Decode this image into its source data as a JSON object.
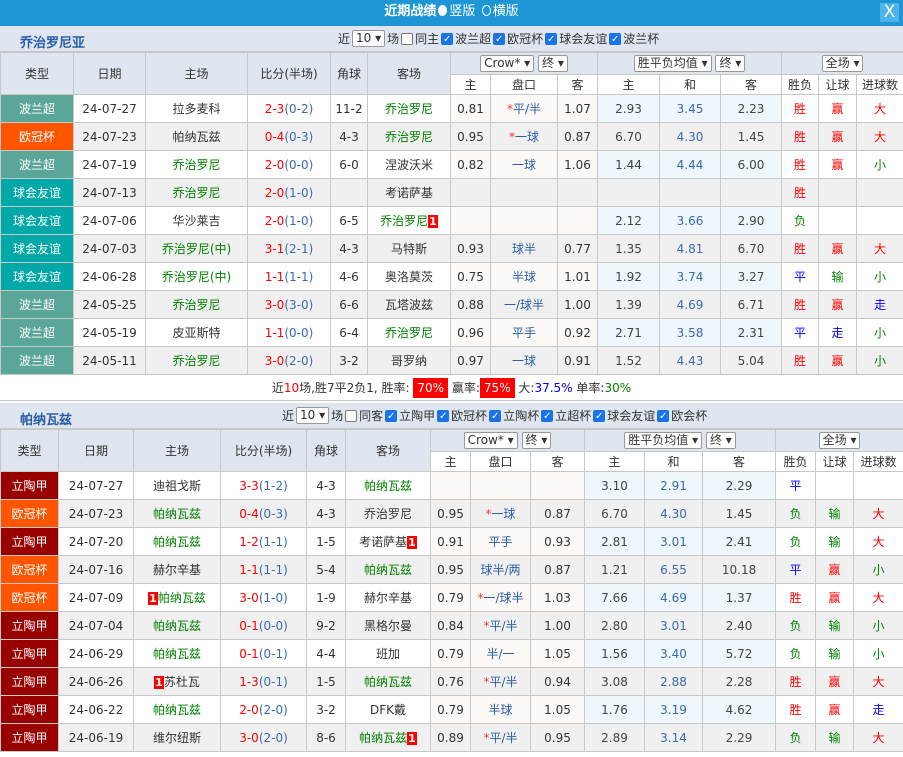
{
  "title": "近期战绩",
  "view_options": [
    "竖版",
    "横版"
  ],
  "close_label": "X",
  "colors": {
    "titlebar": "#1e96d6",
    "波兰超": "#5aa698",
    "欧冠杯": "#ff5500",
    "球会友谊": "#00a8a8",
    "立陶甲": "#990000",
    "win": "#ff0000",
    "lose": "#008000",
    "draw": "#0000ff"
  },
  "headers": {
    "type": "类型",
    "date": "日期",
    "home": "主场",
    "score": "比分(半场)",
    "corner": "角球",
    "away": "客场",
    "odds_company": "Crow*",
    "odds_stage": "终",
    "avg_label": "胜平负均值",
    "avg_stage": "终",
    "scope": "全场",
    "sub": [
      "主",
      "盘口",
      "客",
      "主",
      "和",
      "客",
      "胜负",
      "让球",
      "进球数"
    ]
  },
  "sections": [
    {
      "team": "乔治罗尼亚",
      "near": "近",
      "count": "10",
      "unit": "场",
      "same_label": "同主",
      "filters": [
        "波兰超",
        "欧冠杯",
        "球会友谊",
        "波兰杯"
      ],
      "rows": [
        [
          "波兰超",
          "24-07-27",
          "拉多麦科",
          "",
          "2-3",
          "(0-2)",
          "11-2",
          "乔治罗尼",
          "",
          "0.81",
          "*",
          "平/半",
          "1.07",
          "2.93",
          "3.45",
          "2.23",
          "胜",
          "赢",
          "大",
          "h0"
        ],
        [
          "欧冠杯",
          "24-07-23",
          "帕纳瓦兹",
          "",
          "0-4",
          "(0-3)",
          "4-3",
          "乔治罗尼",
          "",
          "0.95",
          "*",
          "一球",
          "0.87",
          "6.70",
          "4.30",
          "1.45",
          "胜",
          "赢",
          "大",
          "h0"
        ],
        [
          "波兰超",
          "24-07-19",
          "乔治罗尼",
          "",
          "2-0",
          "(0-0)",
          "6-0",
          "涅波沃米",
          "",
          "0.82",
          "",
          "一球",
          "1.06",
          "1.44",
          "4.44",
          "6.00",
          "胜",
          "赢",
          "小",
          "h1"
        ],
        [
          "球会友谊",
          "24-07-13",
          "乔治罗尼",
          "",
          "2-0",
          "(1-0)",
          "",
          "考诺萨基",
          "",
          "",
          "",
          "",
          "",
          "",
          "",
          "",
          "胜",
          "",
          "",
          "h1"
        ],
        [
          "球会友谊",
          "24-07-06",
          "华沙莱吉",
          "",
          "2-0",
          "(1-0)",
          "6-5",
          "乔治罗尼",
          "1",
          "",
          "",
          "",
          "",
          "2.12",
          "3.66",
          "2.90",
          "负",
          "",
          "",
          "h0"
        ],
        [
          "球会友谊",
          "24-07-03",
          "乔治罗尼(中)",
          "",
          "3-1",
          "(2-1)",
          "4-3",
          "马特斯",
          "",
          "0.93",
          "",
          "球半",
          "0.77",
          "1.35",
          "4.81",
          "6.70",
          "胜",
          "赢",
          "大",
          "h1"
        ],
        [
          "球会友谊",
          "24-06-28",
          "乔治罗尼(中)",
          "",
          "1-1",
          "(1-1)",
          "4-6",
          "奥洛莫茨",
          "",
          "0.75",
          "",
          "半球",
          "1.01",
          "1.92",
          "3.74",
          "3.27",
          "平",
          "输",
          "小",
          "h1"
        ],
        [
          "波兰超",
          "24-05-25",
          "乔治罗尼",
          "",
          "3-0",
          "(3-0)",
          "6-6",
          "瓦塔波兹",
          "",
          "0.88",
          "",
          "一/球半",
          "1.00",
          "1.39",
          "4.69",
          "6.71",
          "胜",
          "赢",
          "走",
          "h1"
        ],
        [
          "波兰超",
          "24-05-19",
          "皮亚斯特",
          "",
          "1-1",
          "(0-0)",
          "6-4",
          "乔治罗尼",
          "",
          "0.96",
          "",
          "平手",
          "0.92",
          "2.71",
          "3.58",
          "2.31",
          "平",
          "走",
          "小",
          "h0"
        ],
        [
          "波兰超",
          "24-05-11",
          "乔治罗尼",
          "",
          "3-0",
          "(2-0)",
          "3-2",
          "哥罗纳",
          "",
          "0.97",
          "",
          "一球",
          "0.91",
          "1.52",
          "4.43",
          "5.04",
          "胜",
          "赢",
          "小",
          "h1"
        ]
      ],
      "summary": {
        "a": "近",
        "n": "10",
        "b": "场,胜7平2负1, 胜率:",
        "win_rate": "70%",
        "c": "赢率:",
        "cover_rate": "75%",
        "d": "大:",
        "over_rate": "37.5%",
        "e": "单率:",
        "odd_rate": "30%"
      }
    },
    {
      "team": "帕纳瓦兹",
      "near": "近",
      "count": "10",
      "unit": "场",
      "same_label": "同客",
      "filters": [
        "立陶甲",
        "欧冠杯",
        "立陶杯",
        "立超杯",
        "球会友谊",
        "欧会杯"
      ],
      "rows": [
        [
          "立陶甲",
          "24-07-27",
          "迪祖戈斯",
          "",
          "3-3",
          "(1-2)",
          "4-3",
          "帕纳瓦兹",
          "",
          "",
          "",
          "",
          "",
          "3.10",
          "2.91",
          "2.29",
          "平",
          "",
          "",
          "h0"
        ],
        [
          "欧冠杯",
          "24-07-23",
          "帕纳瓦兹",
          "",
          "0-4",
          "(0-3)",
          "4-3",
          "乔治罗尼",
          "",
          "0.95",
          "*",
          "一球",
          "0.87",
          "6.70",
          "4.30",
          "1.45",
          "负",
          "输",
          "大",
          "h1"
        ],
        [
          "立陶甲",
          "24-07-20",
          "帕纳瓦兹",
          "",
          "1-2",
          "(1-1)",
          "1-5",
          "考诺萨基",
          "1",
          "0.91",
          "",
          "平手",
          "0.93",
          "2.81",
          "3.01",
          "2.41",
          "负",
          "输",
          "大",
          "h1"
        ],
        [
          "欧冠杯",
          "24-07-16",
          "赫尔辛基",
          "",
          "1-1",
          "(1-1)",
          "5-4",
          "帕纳瓦兹",
          "",
          "0.95",
          "",
          "球半/两",
          "0.87",
          "1.21",
          "6.55",
          "10.18",
          "平",
          "赢",
          "小",
          "h0"
        ],
        [
          "欧冠杯",
          "24-07-09",
          "帕纳瓦兹",
          "1",
          "3-0",
          "(1-0)",
          "1-9",
          "赫尔辛基",
          "",
          "0.79",
          "*",
          "一/球半",
          "1.03",
          "7.66",
          "4.69",
          "1.37",
          "胜",
          "赢",
          "大",
          "h1"
        ],
        [
          "立陶甲",
          "24-07-04",
          "帕纳瓦兹",
          "",
          "0-1",
          "(0-0)",
          "9-2",
          "黑格尔曼",
          "",
          "0.84",
          "*",
          "平/半",
          "1.00",
          "2.80",
          "3.01",
          "2.40",
          "负",
          "输",
          "小",
          "h1"
        ],
        [
          "立陶甲",
          "24-06-29",
          "帕纳瓦兹",
          "",
          "0-1",
          "(0-1)",
          "4-4",
          "班加",
          "",
          "0.79",
          "",
          "半/一",
          "1.05",
          "1.56",
          "3.40",
          "5.72",
          "负",
          "输",
          "小",
          "h1"
        ],
        [
          "立陶甲",
          "24-06-26",
          "苏杜瓦",
          "1",
          "1-3",
          "(0-1)",
          "1-5",
          "帕纳瓦兹",
          "",
          "0.76",
          "*",
          "平/半",
          "0.94",
          "3.08",
          "2.88",
          "2.28",
          "胜",
          "赢",
          "大",
          "h0"
        ],
        [
          "立陶甲",
          "24-06-22",
          "帕纳瓦兹",
          "",
          "2-0",
          "(2-0)",
          "3-2",
          "DFK戴",
          "",
          "0.79",
          "",
          "半球",
          "1.05",
          "1.76",
          "3.19",
          "4.62",
          "胜",
          "赢",
          "走",
          "h1"
        ],
        [
          "立陶甲",
          "24-06-19",
          "维尔纽斯",
          "",
          "3-0",
          "(2-0)",
          "8-6",
          "帕纳瓦兹",
          "1",
          "0.89",
          "*",
          "平/半",
          "0.95",
          "2.89",
          "3.14",
          "2.29",
          "负",
          "输",
          "大",
          "h0"
        ]
      ]
    }
  ]
}
